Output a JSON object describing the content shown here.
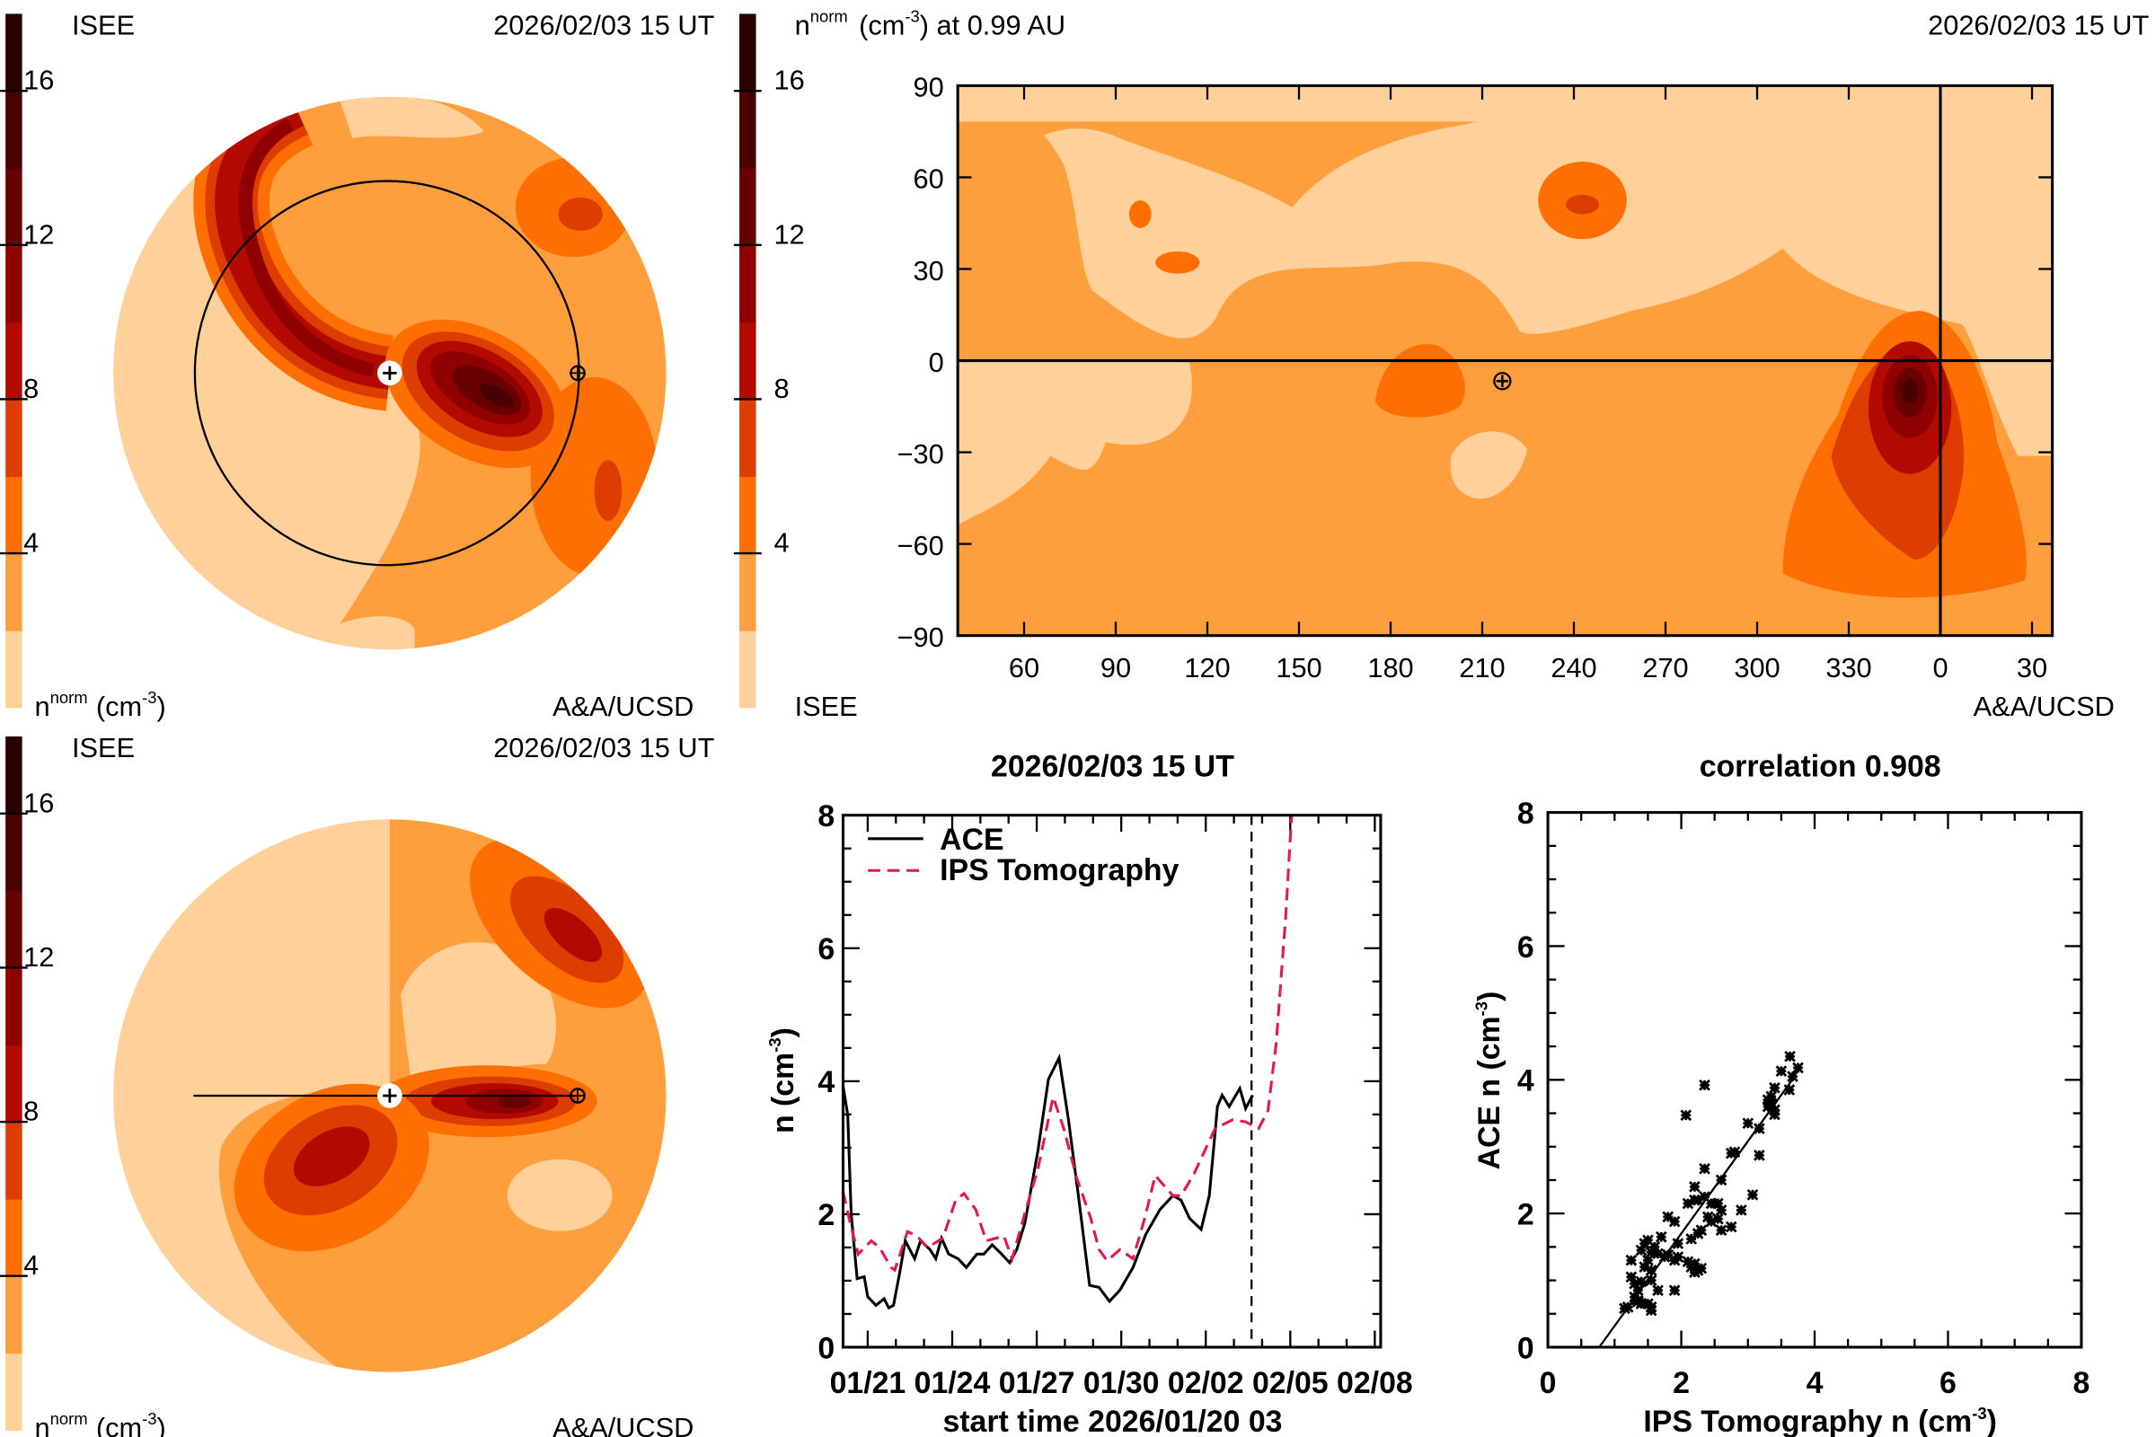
{
  "colors": {
    "levels": [
      "#ffd09a",
      "#ff9e3c",
      "#ff6e00",
      "#dd3d00",
      "#b30a00",
      "#900000",
      "#690000",
      "#4a0000",
      "#2a0000"
    ],
    "ace": "#000000",
    "ips": "#e8174a"
  },
  "colorbar": {
    "min": 0,
    "max": 18,
    "step": 2,
    "ticks": [
      4,
      8,
      12,
      16
    ],
    "tick_labels": [
      "4",
      "8",
      "12",
      "16"
    ]
  },
  "panel_top_left": {
    "org": "ISEE",
    "date": "2026/02/03 15 UT",
    "unit_n": "n",
    "unit_sup": "norm",
    "unit_rest": "(cm",
    "unit_exp": "-3",
    "unit_close": ")",
    "credit": "A&A/UCSD",
    "view": "ecliptic"
  },
  "panel_map": {
    "title_n": "n",
    "title_sup": "norm",
    "title_rest": "(cm",
    "title_exp": "-3",
    "title_close": ") at 0.99 AU",
    "date": "2026/02/03 15 UT",
    "org": "ISEE",
    "credit": "A&A/UCSD",
    "lat_ticks": [
      "90",
      "60",
      "30",
      "0",
      "−30",
      "−60",
      "−90"
    ],
    "lon_ticks": [
      "60",
      "90",
      "120",
      "150",
      "180",
      "210",
      "240",
      "270",
      "300",
      "330",
      "0",
      "30"
    ],
    "earth_symbol": "⊕"
  },
  "panel_bottom_left": {
    "org": "ISEE",
    "date": "2026/02/03 15 UT",
    "unit_n": "n",
    "unit_sup": "norm",
    "unit_rest": "(cm",
    "unit_exp": "-3",
    "unit_close": ")",
    "credit": "A&A/UCSD",
    "view": "meridional"
  },
  "chart_data": [
    {
      "type": "line",
      "title": "2026/02/03 15 UT",
      "xlabel": "start time 2026/01/20 03",
      "ylabel": "n (cm",
      "ylabel_exp": "-3",
      "ylabel_close": ")",
      "xlim": [
        "2026-01-20T03:00",
        "2026-02-08T05:00"
      ],
      "ylim": [
        0,
        8
      ],
      "xticks": [
        "01/21",
        "01/24",
        "01/27",
        "01/30",
        "02/02",
        "02/05",
        "02/08"
      ],
      "xtick_dates": [
        "2026-01-21T00:00",
        "2026-01-24T00:00",
        "2026-01-27T00:00",
        "2026-01-30T00:00",
        "2026-02-02T00:00",
        "2026-02-05T00:00",
        "2026-02-08T00:00"
      ],
      "yticks": [
        "0",
        "2",
        "4",
        "6",
        "8"
      ],
      "current_time": "2026-02-03T15:00",
      "legend": "top-left",
      "series": [
        {
          "name": "ACE",
          "style": "solid",
          "x": [
            "2026-01-20T03:00",
            "2026-01-20T07:00",
            "2026-01-20T10:00",
            "2026-01-20T15:00",
            "2026-01-20T21:00",
            "2026-01-21T00:00",
            "2026-01-21T07:00",
            "2026-01-21T14:00",
            "2026-01-21T18:00",
            "2026-01-21T22:00",
            "2026-01-22T03:00",
            "2026-01-22T08:00",
            "2026-01-22T16:00",
            "2026-01-22T21:00",
            "2026-01-23T05:00",
            "2026-01-23T10:00",
            "2026-01-23T15:00",
            "2026-01-23T21:00",
            "2026-01-24T05:00",
            "2026-01-24T12:00",
            "2026-01-24T21:00",
            "2026-01-25T03:00",
            "2026-01-25T10:00",
            "2026-01-25T18:00",
            "2026-01-26T01:00",
            "2026-01-26T07:00",
            "2026-01-26T14:00",
            "2026-01-27T01:00",
            "2026-01-27T10:00",
            "2026-01-27T19:00",
            "2026-01-28T03:00",
            "2026-01-28T12:00",
            "2026-01-28T21:00",
            "2026-01-29T05:00",
            "2026-01-29T14:00",
            "2026-01-29T23:00",
            "2026-01-30T10:00",
            "2026-01-30T21:00",
            "2026-01-31T09:00",
            "2026-01-31T20:00",
            "2026-02-01T03:00",
            "2026-02-01T10:00",
            "2026-02-01T20:00",
            "2026-02-02T03:00",
            "2026-02-02T10:00",
            "2026-02-02T14:00",
            "2026-02-02T20:00",
            "2026-02-03T05:00",
            "2026-02-03T10:00",
            "2026-02-03T16:00"
          ],
          "y": [
            3.93,
            3.49,
            2.0,
            1.03,
            1.06,
            0.76,
            0.63,
            0.73,
            0.59,
            0.63,
            1.1,
            1.6,
            1.33,
            1.6,
            1.47,
            1.33,
            1.64,
            1.4,
            1.33,
            1.2,
            1.4,
            1.4,
            1.54,
            1.4,
            1.27,
            1.47,
            1.87,
            2.95,
            4.03,
            4.35,
            3.42,
            2.21,
            0.93,
            0.9,
            0.69,
            0.86,
            1.2,
            1.7,
            2.07,
            2.28,
            2.21,
            1.94,
            1.77,
            2.28,
            3.62,
            3.79,
            3.62,
            3.89,
            3.59,
            3.79
          ]
        },
        {
          "name": "IPS Tomography",
          "style": "dashed",
          "x": [
            "2026-01-20T03:00",
            "2026-01-20T09:00",
            "2026-01-20T16:00",
            "2026-01-21T03:00",
            "2026-01-21T10:00",
            "2026-01-21T20:00",
            "2026-01-21T23:00",
            "2026-01-22T10:00",
            "2026-01-22T18:00",
            "2026-01-23T03:00",
            "2026-01-23T16:00",
            "2026-01-24T03:00",
            "2026-01-24T10:00",
            "2026-01-24T20:00",
            "2026-01-25T05:00",
            "2026-01-25T20:00",
            "2026-01-26T03:00",
            "2026-01-26T16:00",
            "2026-01-27T01:00",
            "2026-01-27T14:00",
            "2026-01-27T23:00",
            "2026-01-28T10:00",
            "2026-01-28T22:00",
            "2026-01-29T05:00",
            "2026-01-29T12:00",
            "2026-01-29T23:00",
            "2026-01-30T10:00",
            "2026-01-30T20:00",
            "2026-01-31T05:00",
            "2026-01-31T20:00",
            "2026-02-01T03:00",
            "2026-02-01T14:00",
            "2026-02-02T08:00",
            "2026-02-02T23:00",
            "2026-02-03T10:00",
            "2026-02-03T21:00",
            "2026-02-04T05:00",
            "2026-02-04T12:00",
            "2026-02-04T20:00",
            "2026-02-05T01:00",
            "2026-02-05T03:00"
          ],
          "y": [
            2.34,
            1.87,
            1.4,
            1.6,
            1.5,
            1.2,
            1.16,
            1.74,
            1.67,
            1.5,
            1.64,
            2.21,
            2.31,
            2.07,
            1.6,
            1.67,
            1.33,
            2.14,
            2.68,
            3.76,
            3.29,
            2.55,
            1.94,
            1.47,
            1.3,
            1.47,
            1.33,
            1.94,
            2.58,
            2.28,
            2.28,
            2.61,
            3.29,
            3.42,
            3.39,
            3.29,
            3.56,
            4.57,
            6.45,
            7.93,
            8.2
          ]
        }
      ]
    },
    {
      "type": "scatter",
      "title": "correlation 0.908",
      "xlabel": "IPS Tomography n (cm",
      "xlabel_exp": "-3",
      "xlabel_close": ")",
      "ylabel": "ACE n (cm",
      "ylabel_exp": "-3",
      "ylabel_close": ")",
      "xlim": [
        0,
        8
      ],
      "ylim": [
        0,
        8
      ],
      "xticks": [
        "0",
        "2",
        "4",
        "6",
        "8"
      ],
      "yticks": [
        "0",
        "2",
        "4",
        "6",
        "8"
      ],
      "marker": "asterisk",
      "fit_line": [
        [
          0.77,
          0
        ],
        [
          3.7,
          4.05
        ]
      ],
      "points": [
        [
          3.63,
          4.35
        ],
        [
          3.5,
          4.13
        ],
        [
          3.75,
          4.18
        ],
        [
          3.67,
          4.05
        ],
        [
          3.62,
          3.85
        ],
        [
          3.4,
          3.88
        ],
        [
          3.35,
          3.75
        ],
        [
          3.3,
          3.7
        ],
        [
          3.3,
          3.6
        ],
        [
          3.4,
          3.55
        ],
        [
          3.4,
          3.48
        ],
        [
          3.35,
          3.65
        ],
        [
          2.35,
          3.92
        ],
        [
          2.07,
          3.47
        ],
        [
          3.0,
          3.35
        ],
        [
          3.17,
          3.27
        ],
        [
          2.8,
          2.92
        ],
        [
          2.75,
          2.9
        ],
        [
          3.17,
          2.87
        ],
        [
          2.35,
          2.67
        ],
        [
          2.6,
          2.5
        ],
        [
          2.2,
          2.4
        ],
        [
          3.07,
          2.28
        ],
        [
          2.1,
          2.15
        ],
        [
          2.25,
          2.2
        ],
        [
          2.2,
          2.2
        ],
        [
          2.35,
          2.25
        ],
        [
          2.45,
          2.15
        ],
        [
          2.55,
          2.15
        ],
        [
          2.6,
          2.05
        ],
        [
          2.9,
          2.05
        ],
        [
          2.4,
          1.95
        ],
        [
          2.55,
          1.92
        ],
        [
          2.45,
          1.88
        ],
        [
          1.8,
          1.95
        ],
        [
          1.9,
          1.88
        ],
        [
          2.75,
          1.8
        ],
        [
          2.6,
          1.75
        ],
        [
          2.3,
          1.75
        ],
        [
          2.25,
          1.7
        ],
        [
          2.15,
          1.62
        ],
        [
          1.95,
          1.55
        ],
        [
          1.7,
          1.65
        ],
        [
          1.5,
          1.6
        ],
        [
          1.45,
          1.55
        ],
        [
          1.6,
          1.5
        ],
        [
          1.4,
          1.45
        ],
        [
          1.55,
          1.42
        ],
        [
          1.65,
          1.4
        ],
        [
          1.75,
          1.35
        ],
        [
          1.8,
          1.38
        ],
        [
          1.5,
          1.3
        ],
        [
          1.95,
          1.35
        ],
        [
          1.9,
          1.3
        ],
        [
          2.1,
          1.28
        ],
        [
          2.15,
          1.2
        ],
        [
          2.2,
          1.25
        ],
        [
          2.25,
          1.15
        ],
        [
          2.3,
          1.18
        ],
        [
          2.2,
          1.12
        ],
        [
          1.25,
          1.3
        ],
        [
          1.25,
          1.05
        ],
        [
          1.45,
          1.2
        ],
        [
          1.55,
          1.15
        ],
        [
          1.4,
          0.98
        ],
        [
          1.55,
          1.0
        ],
        [
          1.3,
          0.95
        ],
        [
          1.35,
          0.85
        ],
        [
          1.65,
          0.85
        ],
        [
          1.9,
          0.85
        ],
        [
          1.3,
          0.75
        ],
        [
          1.35,
          0.7
        ],
        [
          1.4,
          0.65
        ],
        [
          1.5,
          0.65
        ],
        [
          1.55,
          0.6
        ],
        [
          1.2,
          0.6
        ],
        [
          1.15,
          0.58
        ],
        [
          1.55,
          0.55
        ],
        [
          1.35,
          0.68
        ]
      ]
    }
  ]
}
